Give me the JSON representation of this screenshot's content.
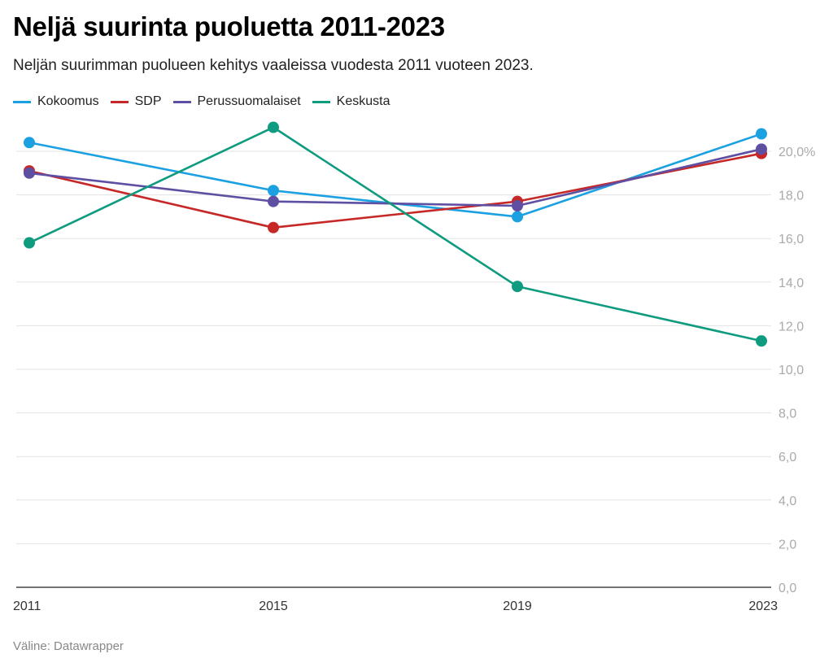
{
  "title": "Neljä suurinta puoluetta 2011-2023",
  "subtitle": "Neljän suurimman puolueen kehitys vaaleissa vuodesta 2011 vuoteen 2023.",
  "source": "Väline: Datawrapper",
  "chart_data": {
    "type": "line",
    "title": "Neljä suurinta puoluetta 2011-2023",
    "subtitle": "Neljän suurimman puolueen kehitys vaaleissa vuodesta 2011 vuoteen 2023.",
    "x": [
      "2011",
      "2015",
      "2019",
      "2023"
    ],
    "x_tick_labels": [
      "2011",
      "2015",
      "2019",
      "2023"
    ],
    "ylim": [
      0,
      21
    ],
    "y_ticks": [
      0,
      2,
      4,
      6,
      8,
      10,
      12,
      14,
      16,
      18,
      20
    ],
    "y_tick_labels": [
      "0,0",
      "2,0",
      "4,0",
      "6,0",
      "8,0",
      "10,0",
      "12,0",
      "14,0",
      "16,0",
      "18,0",
      "20,0%"
    ],
    "y_axis_side": "right",
    "grid": true,
    "legend_position": "top-left",
    "series": [
      {
        "name": "Kokoomus",
        "color": "#1ba1e2",
        "values": [
          20.4,
          18.2,
          17.0,
          20.8
        ]
      },
      {
        "name": "SDP",
        "color": "#c62828",
        "values": [
          19.1,
          16.5,
          17.7,
          19.9
        ]
      },
      {
        "name": "Perussuomalaiset",
        "color": "#5e4fa2",
        "values": [
          19.0,
          17.7,
          17.5,
          20.1
        ]
      },
      {
        "name": "Keskusta",
        "color": "#0e9b7f",
        "values": [
          15.8,
          21.1,
          13.8,
          11.3
        ]
      }
    ]
  }
}
